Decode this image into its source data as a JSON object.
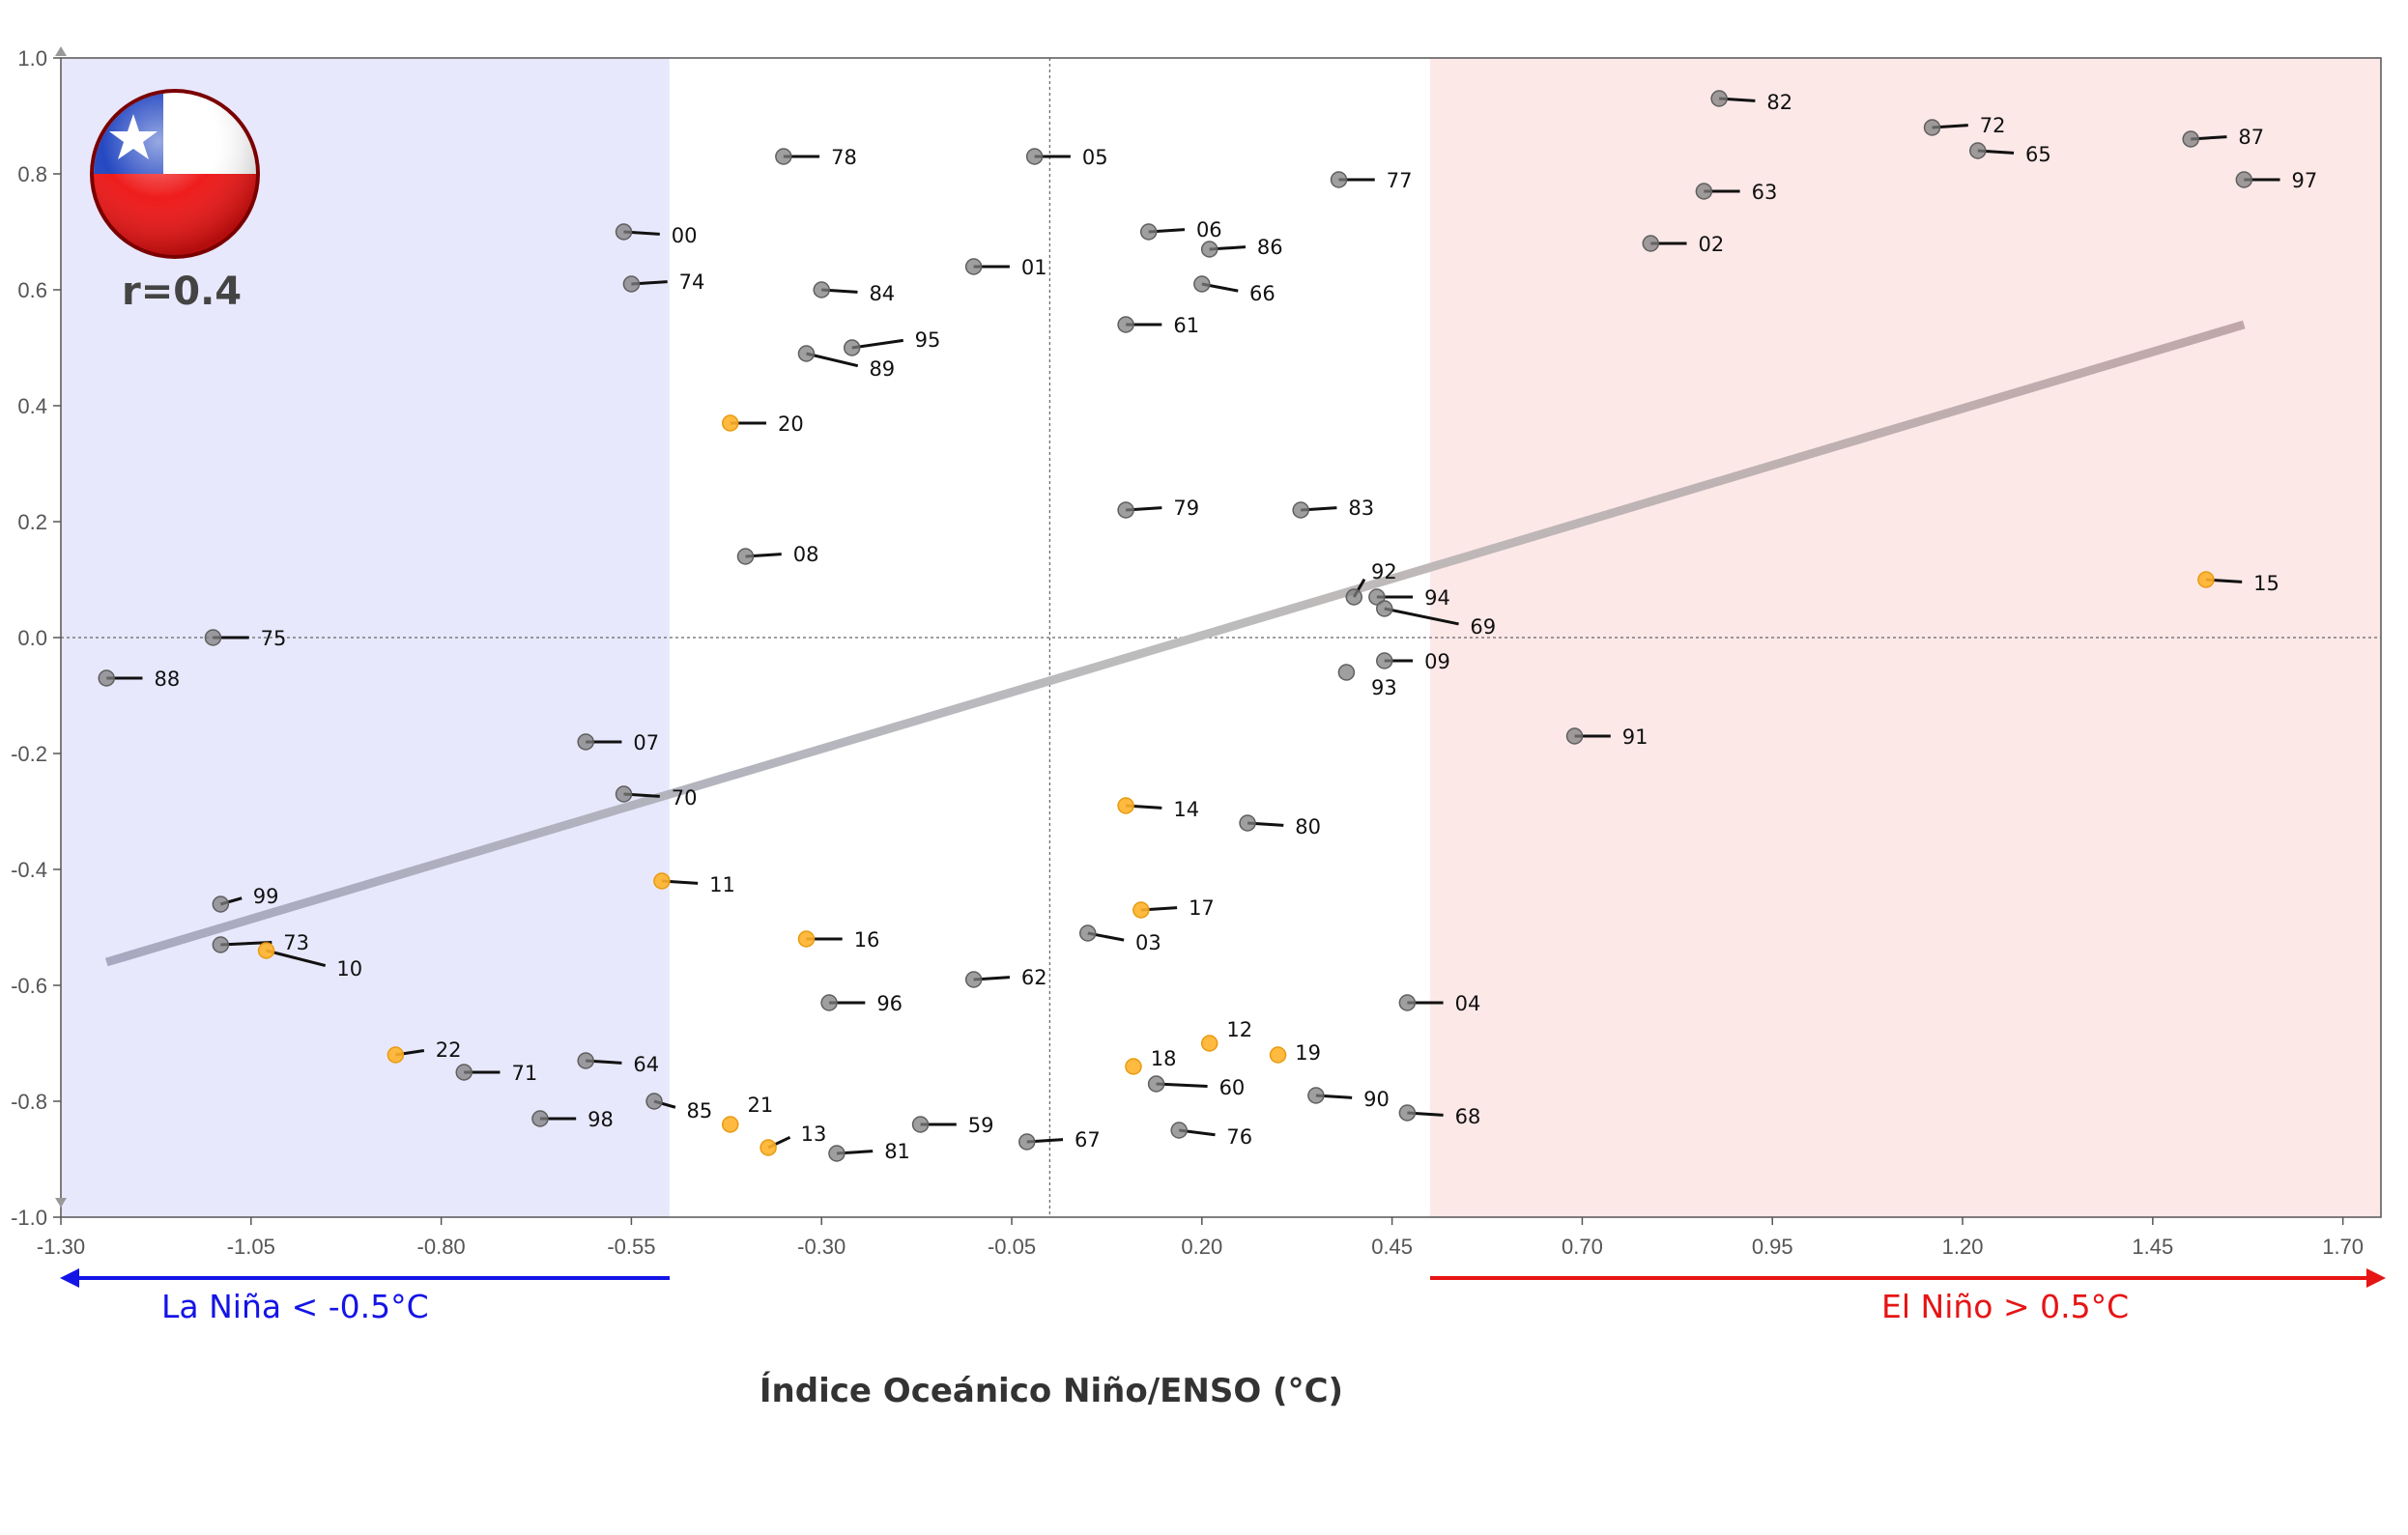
{
  "chart_data": {
    "type": "scatter",
    "xlabel": "Índice Oceánico Niño/ENSO (°C)",
    "ylabel": "",
    "title": "",
    "annotation": "r=0.4",
    "flag_icon": "chile-flag-icon",
    "xlim": [
      -1.3,
      1.75
    ],
    "ylim": [
      -1.0,
      1.0
    ],
    "xticks": [
      "-1.30",
      "-1.05",
      "-0.80",
      "-0.55",
      "-0.30",
      "-0.05",
      "0.20",
      "0.45",
      "0.70",
      "0.95",
      "1.20",
      "1.45",
      "1.70"
    ],
    "yticks": [
      "1.0",
      "0.8",
      "0.6",
      "0.4",
      "0.2",
      "0.0",
      "-0.2",
      "-0.4",
      "-0.6",
      "-0.8",
      "-1.0"
    ],
    "grid": false,
    "reference_lines": {
      "x": 0.0,
      "y": 0.0
    },
    "regions": [
      {
        "label": "La Niña < -0.5°C",
        "x_from": -1.3,
        "x_to": -0.5,
        "fill": "#e8e8fd",
        "arrow_color": "#1414e6"
      },
      {
        "label": "El Niño > 0.5°C",
        "x_from": 0.5,
        "x_to": 1.75,
        "fill": "#fde8e8",
        "arrow_color": "#e61414"
      }
    ],
    "trendline": {
      "x": [
        -1.24,
        1.57
      ],
      "y": [
        -0.56,
        0.54
      ],
      "color_left": "#a8a8c0",
      "color_right": "#c0a8aa"
    },
    "colors": {
      "historical": "#7f7f7f",
      "recent": "#ffb22a",
      "label_line": "#111111"
    },
    "points": [
      {
        "year": "82",
        "x": 0.88,
        "y": 0.93,
        "lx": 0.94,
        "ly": 0.925,
        "recent": false
      },
      {
        "year": "72",
        "x": 1.16,
        "y": 0.88,
        "lx": 1.22,
        "ly": 0.885,
        "recent": false
      },
      {
        "year": "87",
        "x": 1.5,
        "y": 0.86,
        "lx": 1.56,
        "ly": 0.865,
        "recent": false
      },
      {
        "year": "65",
        "x": 1.22,
        "y": 0.84,
        "lx": 1.28,
        "ly": 0.835,
        "recent": false
      },
      {
        "year": "97",
        "x": 1.57,
        "y": 0.79,
        "lx": 1.63,
        "ly": 0.79,
        "recent": false
      },
      {
        "year": "63",
        "x": 0.86,
        "y": 0.77,
        "lx": 0.92,
        "ly": 0.77,
        "recent": false
      },
      {
        "year": "02",
        "x": 0.79,
        "y": 0.68,
        "lx": 0.85,
        "ly": 0.68,
        "recent": false
      },
      {
        "year": "78",
        "x": -0.35,
        "y": 0.83,
        "lx": -0.29,
        "ly": 0.83,
        "recent": false
      },
      {
        "year": "05",
        "x": -0.02,
        "y": 0.83,
        "lx": 0.04,
        "ly": 0.83,
        "recent": false
      },
      {
        "year": "77",
        "x": 0.38,
        "y": 0.79,
        "lx": 0.44,
        "ly": 0.79,
        "recent": false
      },
      {
        "year": "00",
        "x": -0.56,
        "y": 0.7,
        "lx": -0.5,
        "ly": 0.695,
        "recent": false
      },
      {
        "year": "06",
        "x": 0.13,
        "y": 0.7,
        "lx": 0.19,
        "ly": 0.705,
        "recent": false
      },
      {
        "year": "86",
        "x": 0.21,
        "y": 0.67,
        "lx": 0.27,
        "ly": 0.675,
        "recent": false
      },
      {
        "year": "01",
        "x": -0.1,
        "y": 0.64,
        "lx": -0.04,
        "ly": 0.64,
        "recent": false
      },
      {
        "year": "66",
        "x": 0.2,
        "y": 0.61,
        "lx": 0.26,
        "ly": 0.595,
        "recent": false
      },
      {
        "year": "74",
        "x": -0.55,
        "y": 0.61,
        "lx": -0.49,
        "ly": 0.615,
        "recent": false
      },
      {
        "year": "84",
        "x": -0.3,
        "y": 0.6,
        "lx": -0.24,
        "ly": 0.595,
        "recent": false
      },
      {
        "year": "61",
        "x": 0.1,
        "y": 0.54,
        "lx": 0.16,
        "ly": 0.54,
        "recent": false
      },
      {
        "year": "95",
        "x": -0.26,
        "y": 0.5,
        "lx": -0.18,
        "ly": 0.515,
        "recent": false
      },
      {
        "year": "89",
        "x": -0.32,
        "y": 0.49,
        "lx": -0.24,
        "ly": 0.465,
        "recent": false
      },
      {
        "year": "20",
        "x": -0.42,
        "y": 0.37,
        "lx": -0.36,
        "ly": 0.37,
        "recent": true
      },
      {
        "year": "79",
        "x": 0.1,
        "y": 0.22,
        "lx": 0.16,
        "ly": 0.225,
        "recent": false
      },
      {
        "year": "83",
        "x": 0.33,
        "y": 0.22,
        "lx": 0.39,
        "ly": 0.225,
        "recent": false
      },
      {
        "year": "08",
        "x": -0.4,
        "y": 0.14,
        "lx": -0.34,
        "ly": 0.145,
        "recent": false
      },
      {
        "year": "15",
        "x": 1.52,
        "y": 0.1,
        "lx": 1.58,
        "ly": 0.095,
        "recent": true
      },
      {
        "year": "92",
        "x": 0.4,
        "y": 0.07,
        "lx": 0.42,
        "ly": 0.115,
        "recent": false
      },
      {
        "year": "94",
        "x": 0.43,
        "y": 0.07,
        "lx": 0.49,
        "ly": 0.07,
        "recent": false
      },
      {
        "year": "69",
        "x": 0.44,
        "y": 0.05,
        "lx": 0.55,
        "ly": 0.02,
        "recent": false
      },
      {
        "year": "75",
        "x": -1.1,
        "y": 0.0,
        "lx": -1.04,
        "ly": 0.0,
        "recent": false
      },
      {
        "year": "09",
        "x": 0.44,
        "y": -0.04,
        "lx": 0.49,
        "ly": -0.04,
        "recent": false
      },
      {
        "year": "93",
        "x": 0.39,
        "y": -0.06,
        "lx": 0.42,
        "ly": -0.085,
        "recent": false
      },
      {
        "year": "88",
        "x": -1.24,
        "y": -0.07,
        "lx": -1.18,
        "ly": -0.07,
        "recent": false
      },
      {
        "year": "07",
        "x": -0.61,
        "y": -0.18,
        "lx": -0.55,
        "ly": -0.18,
        "recent": false
      },
      {
        "year": "91",
        "x": 0.69,
        "y": -0.17,
        "lx": 0.75,
        "ly": -0.17,
        "recent": false
      },
      {
        "year": "70",
        "x": -0.56,
        "y": -0.27,
        "lx": -0.5,
        "ly": -0.275,
        "recent": false
      },
      {
        "year": "14",
        "x": 0.1,
        "y": -0.29,
        "lx": 0.16,
        "ly": -0.295,
        "recent": true
      },
      {
        "year": "80",
        "x": 0.26,
        "y": -0.32,
        "lx": 0.32,
        "ly": -0.325,
        "recent": false
      },
      {
        "year": "11",
        "x": -0.51,
        "y": -0.42,
        "lx": -0.45,
        "ly": -0.425,
        "recent": true
      },
      {
        "year": "99",
        "x": -1.09,
        "y": -0.46,
        "lx": -1.05,
        "ly": -0.445,
        "recent": false
      },
      {
        "year": "17",
        "x": 0.12,
        "y": -0.47,
        "lx": 0.18,
        "ly": -0.465,
        "recent": true
      },
      {
        "year": "73",
        "x": -1.09,
        "y": -0.53,
        "lx": -1.01,
        "ly": -0.525,
        "recent": false
      },
      {
        "year": "16",
        "x": -0.32,
        "y": -0.52,
        "lx": -0.26,
        "ly": -0.52,
        "recent": true
      },
      {
        "year": "03",
        "x": 0.05,
        "y": -0.51,
        "lx": 0.11,
        "ly": -0.525,
        "recent": false
      },
      {
        "year": "10",
        "x": -1.03,
        "y": -0.54,
        "lx": -0.94,
        "ly": -0.57,
        "recent": true
      },
      {
        "year": "62",
        "x": -0.1,
        "y": -0.59,
        "lx": -0.04,
        "ly": -0.585,
        "recent": false
      },
      {
        "year": "04",
        "x": 0.47,
        "y": -0.63,
        "lx": 0.53,
        "ly": -0.63,
        "recent": false
      },
      {
        "year": "96",
        "x": -0.29,
        "y": -0.63,
        "lx": -0.23,
        "ly": -0.63,
        "recent": false
      },
      {
        "year": "12",
        "x": 0.21,
        "y": -0.7,
        "lx": 0.23,
        "ly": -0.675,
        "recent": true
      },
      {
        "year": "19",
        "x": 0.3,
        "y": -0.72,
        "lx": 0.32,
        "ly": -0.715,
        "recent": true
      },
      {
        "year": "22",
        "x": -0.86,
        "y": -0.72,
        "lx": -0.81,
        "ly": -0.71,
        "recent": true
      },
      {
        "year": "18",
        "x": 0.11,
        "y": -0.74,
        "lx": 0.13,
        "ly": -0.725,
        "recent": true
      },
      {
        "year": "64",
        "x": -0.61,
        "y": -0.73,
        "lx": -0.55,
        "ly": -0.735,
        "recent": false
      },
      {
        "year": "71",
        "x": -0.77,
        "y": -0.75,
        "lx": -0.71,
        "ly": -0.75,
        "recent": false
      },
      {
        "year": "60",
        "x": 0.14,
        "y": -0.77,
        "lx": 0.22,
        "ly": -0.775,
        "recent": false
      },
      {
        "year": "90",
        "x": 0.35,
        "y": -0.79,
        "lx": 0.41,
        "ly": -0.795,
        "recent": false
      },
      {
        "year": "85",
        "x": -0.52,
        "y": -0.8,
        "lx": -0.48,
        "ly": -0.815,
        "recent": false
      },
      {
        "year": "21",
        "x": -0.42,
        "y": -0.84,
        "lx": -0.4,
        "ly": -0.805,
        "recent": true
      },
      {
        "year": "68",
        "x": 0.47,
        "y": -0.82,
        "lx": 0.53,
        "ly": -0.825,
        "recent": false
      },
      {
        "year": "98",
        "x": -0.67,
        "y": -0.83,
        "lx": -0.61,
        "ly": -0.83,
        "recent": false
      },
      {
        "year": "59",
        "x": -0.17,
        "y": -0.84,
        "lx": -0.11,
        "ly": -0.84,
        "recent": false
      },
      {
        "year": "76",
        "x": 0.17,
        "y": -0.85,
        "lx": 0.23,
        "ly": -0.86,
        "recent": false
      },
      {
        "year": "13",
        "x": -0.37,
        "y": -0.88,
        "lx": -0.33,
        "ly": -0.855,
        "recent": true
      },
      {
        "year": "67",
        "x": -0.03,
        "y": -0.87,
        "lx": 0.03,
        "ly": -0.865,
        "recent": false
      },
      {
        "year": "81",
        "x": -0.28,
        "y": -0.89,
        "lx": -0.22,
        "ly": -0.885,
        "recent": false
      }
    ]
  }
}
